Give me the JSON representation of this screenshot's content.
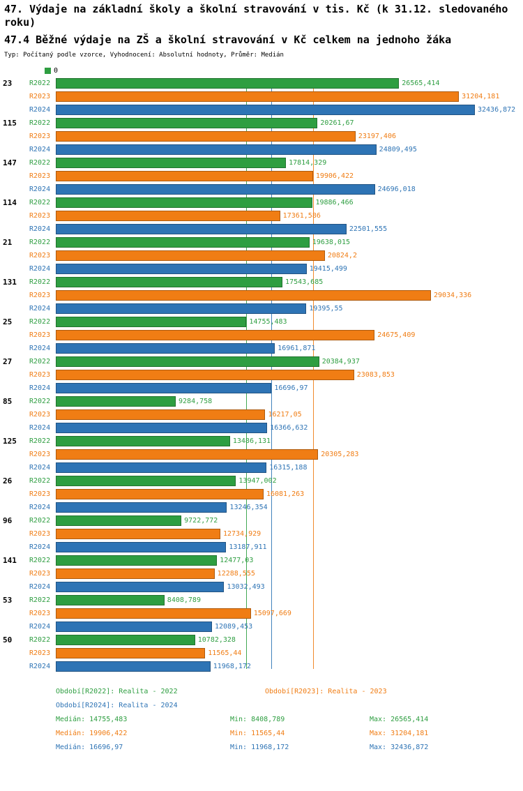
{
  "header": {
    "title": "47. Výdaje na základní školy a školní stravování v tis. Kč (k 31.12. sledovaného roku)",
    "subtitle": "47.4 Běžné výdaje na ZŠ a školní stravování v Kč celkem na jednoho žáka",
    "meta": "Typ: Počítaný podle vzorce, Vyhodnocení: Absolutní hodnoty, Průměr: Medián"
  },
  "chart_data": {
    "type": "bar",
    "orientation": "horizontal",
    "axis_origin_label": "0",
    "xlim": [
      0,
      32436.872
    ],
    "series_names": [
      "R2022",
      "R2023",
      "R2024"
    ],
    "series_colors": {
      "R2022": "#2e9e41",
      "R2023": "#f07d14",
      "R2024": "#2e74b5"
    },
    "groups": [
      {
        "label": "23",
        "values": [
          "26565,414",
          "31204,181",
          "32436,872"
        ]
      },
      {
        "label": "115",
        "values": [
          "20261,67",
          "23197,406",
          "24809,495"
        ]
      },
      {
        "label": "147",
        "values": [
          "17814,329",
          "19906,422",
          "24696,018"
        ]
      },
      {
        "label": "114",
        "values": [
          "19886,466",
          "17361,586",
          "22501,555"
        ]
      },
      {
        "label": "21",
        "values": [
          "19638,015",
          "20824,2",
          "19415,499"
        ]
      },
      {
        "label": "131",
        "values": [
          "17543,685",
          "29034,336",
          "19395,55"
        ]
      },
      {
        "label": "25",
        "values": [
          "14755,483",
          "24675,409",
          "16961,871"
        ]
      },
      {
        "label": "27",
        "values": [
          "20384,937",
          "23083,853",
          "16696,97"
        ]
      },
      {
        "label": "85",
        "values": [
          "9284,758",
          "16217,05",
          "16366,632"
        ]
      },
      {
        "label": "125",
        "values": [
          "13486,131",
          "20305,283",
          "16315,188"
        ]
      },
      {
        "label": "26",
        "values": [
          "13947,002",
          "16081,263",
          "13246,354"
        ]
      },
      {
        "label": "96",
        "values": [
          "9722,772",
          "12734,929",
          "13187,911"
        ]
      },
      {
        "label": "141",
        "values": [
          "12477,03",
          "12288,555",
          "13032,493"
        ]
      },
      {
        "label": "53",
        "values": [
          "8408,789",
          "15097,669",
          "12089,453"
        ]
      },
      {
        "label": "50",
        "values": [
          "10782,328",
          "11565,44",
          "11968,172"
        ]
      }
    ],
    "median_lines": [
      {
        "series": "R2022",
        "value": "14755,483"
      },
      {
        "series": "R2023",
        "value": "19906,422"
      },
      {
        "series": "R2024",
        "value": "16696,97"
      }
    ]
  },
  "legend": {
    "items": [
      {
        "series": "R2022",
        "label": "Období[R2022]: Realita - 2022"
      },
      {
        "series": "R2023",
        "label": "Období[R2023]: Realita - 2023"
      },
      {
        "series": "R2024",
        "label": "Období[R2024]: Realita - 2024"
      }
    ]
  },
  "stats": [
    {
      "series": "R2022",
      "median": "Medián: 14755,483",
      "min": "Min: 8408,789",
      "max": "Max: 26565,414"
    },
    {
      "series": "R2023",
      "median": "Medián: 19906,422",
      "min": "Min: 11565,44",
      "max": "Max: 31204,181"
    },
    {
      "series": "R2024",
      "median": "Medián: 16696,97",
      "min": "Min: 11968,172",
      "max": "Max: 32436,872"
    }
  ]
}
